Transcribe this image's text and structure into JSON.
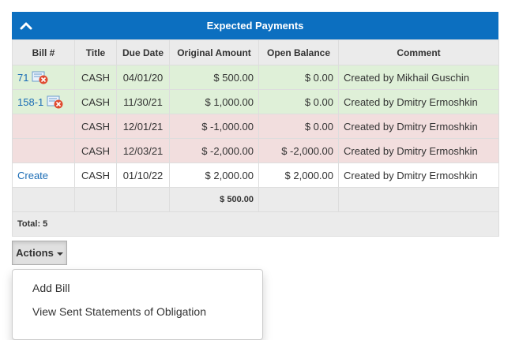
{
  "panel": {
    "title": "Expected Payments",
    "header_color": "#0c6fc0",
    "collapse_icon": "chevron-up-icon"
  },
  "table": {
    "headers": [
      "Bill #",
      "Title",
      "Due Date",
      "Original Amount",
      "Open Balance",
      "Comment"
    ],
    "rows": [
      {
        "bill": "71",
        "has_icon": true,
        "title": "CASH",
        "due_date": "04/01/20",
        "original_amount": "$ 500.00",
        "open_balance": "$ 0.00",
        "comment": "Created by Mikhail Guschin",
        "status": "green"
      },
      {
        "bill": "158-1",
        "has_icon": true,
        "title": "CASH",
        "due_date": "11/30/21",
        "original_amount": "$ 1,000.00",
        "open_balance": "$ 0.00",
        "comment": "Created by Dmitry Ermoshkin",
        "status": "green"
      },
      {
        "bill": "",
        "has_icon": false,
        "title": "CASH",
        "due_date": "12/01/21",
        "original_amount": "$ -1,000.00",
        "open_balance": "$ 0.00",
        "comment": "Created by Dmitry Ermoshkin",
        "status": "red"
      },
      {
        "bill": "",
        "has_icon": false,
        "title": "CASH",
        "due_date": "12/03/21",
        "original_amount": "$ -2,000.00",
        "open_balance": "$ -2,000.00",
        "comment": "Created by Dmitry Ermoshkin",
        "status": "red"
      },
      {
        "bill": "Create",
        "has_icon": false,
        "title": "CASH",
        "due_date": "01/10/22",
        "original_amount": "$ 2,000.00",
        "open_balance": "$ 2,000.00",
        "comment": "Created by Dmitry Ermoshkin",
        "status": "white"
      }
    ],
    "total_original_amount": "$ 500.00",
    "total_count_label": "Total: 5",
    "status_colors": {
      "green": "#dff0d8",
      "red": "#f2dede",
      "white": "#ffffff"
    }
  },
  "actions": {
    "button_label": "Actions",
    "menu_items": [
      "Add Bill",
      "View Sent Statements of Obligation"
    ]
  }
}
